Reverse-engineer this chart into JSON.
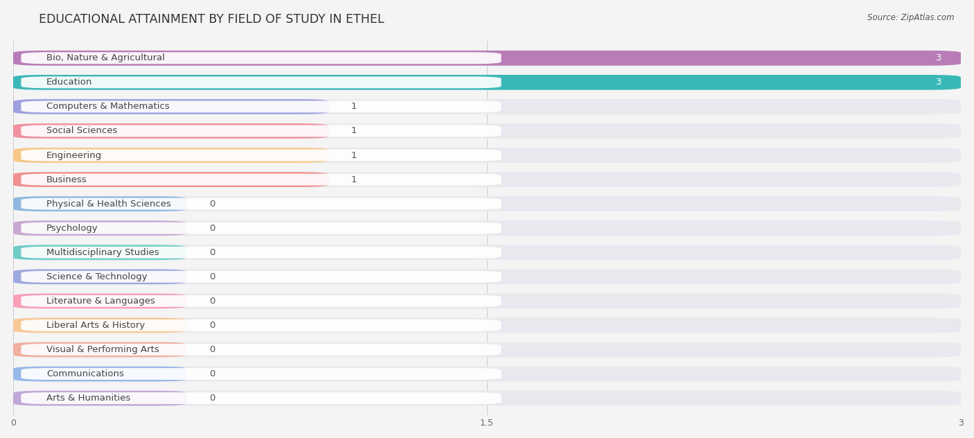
{
  "title": "EDUCATIONAL ATTAINMENT BY FIELD OF STUDY IN ETHEL",
  "source": "Source: ZipAtlas.com",
  "categories": [
    "Bio, Nature & Agricultural",
    "Education",
    "Computers & Mathematics",
    "Social Sciences",
    "Engineering",
    "Business",
    "Physical & Health Sciences",
    "Psychology",
    "Multidisciplinary Studies",
    "Science & Technology",
    "Literature & Languages",
    "Liberal Arts & History",
    "Visual & Performing Arts",
    "Communications",
    "Arts & Humanities"
  ],
  "values": [
    3,
    3,
    1,
    1,
    1,
    1,
    0,
    0,
    0,
    0,
    0,
    0,
    0,
    0,
    0
  ],
  "colors": [
    "#b87db8",
    "#3ab8b8",
    "#a0a0e0",
    "#f090a0",
    "#f8c888",
    "#f09090",
    "#90b8e0",
    "#c8a8d0",
    "#70ccc8",
    "#a0a8e0",
    "#f8a0b8",
    "#f8c898",
    "#f0b0a0",
    "#98b8e8",
    "#c0a8d8"
  ],
  "bg_color": "#f4f4f4",
  "bar_bg_color": "#e8e8ee",
  "xlim": [
    0,
    3
  ],
  "xticks": [
    0,
    1.5,
    3
  ],
  "bar_height": 0.62,
  "zero_bar_width": 0.55,
  "title_fontsize": 12.5,
  "label_fontsize": 9.5,
  "value_fontsize": 9.5
}
